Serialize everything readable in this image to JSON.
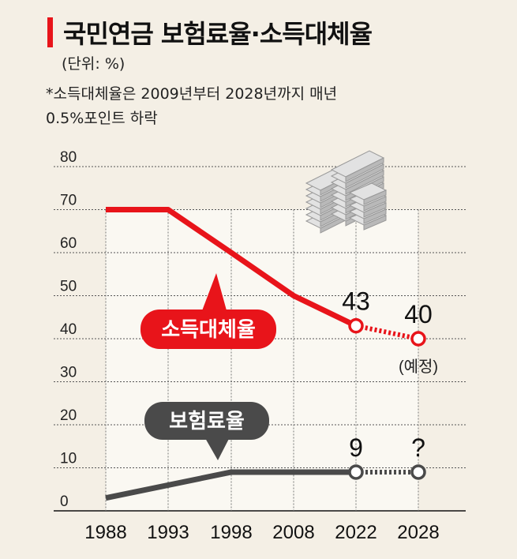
{
  "header": {
    "title": "국민연금 보험료율·소득대체율",
    "unit": "(단위: %)",
    "note_line1": "*소득대체율은 2009년부터 2028년까지 매년",
    "note_line2": "0.5%포인트 하락"
  },
  "chart_data": {
    "type": "line",
    "categories": [
      "1988",
      "1993",
      "1998",
      "2008",
      "2022",
      "2028"
    ],
    "ylim": [
      0,
      80
    ],
    "y_ticks": [
      "0",
      "10",
      "20",
      "30",
      "40",
      "50",
      "60",
      "70",
      "80"
    ],
    "series": [
      {
        "name": "소득대체율",
        "color": "#e8141a",
        "points": [
          {
            "x": "1988",
            "y": 70
          },
          {
            "x": "1993",
            "y": 70
          },
          {
            "x": "1998",
            "y": 60
          },
          {
            "x": "2008",
            "y": 50
          },
          {
            "x": "2022",
            "y": 43,
            "label": "43",
            "dashed_from": true
          },
          {
            "x": "2028",
            "y": 40,
            "label": "40",
            "sublabel": "(예정)"
          }
        ]
      },
      {
        "name": "보험료율",
        "color": "#4a4a4a",
        "points": [
          {
            "x": "1988",
            "y": 3
          },
          {
            "x": "1998",
            "y": 9
          },
          {
            "x": "2022",
            "y": 9,
            "label": "9"
          },
          {
            "x": "2028",
            "y": 9,
            "label": "?"
          }
        ]
      }
    ],
    "grid": true,
    "colors": {
      "red": "#e8141a",
      "dark": "#4a4a4a",
      "background": "#f4efe5"
    }
  }
}
